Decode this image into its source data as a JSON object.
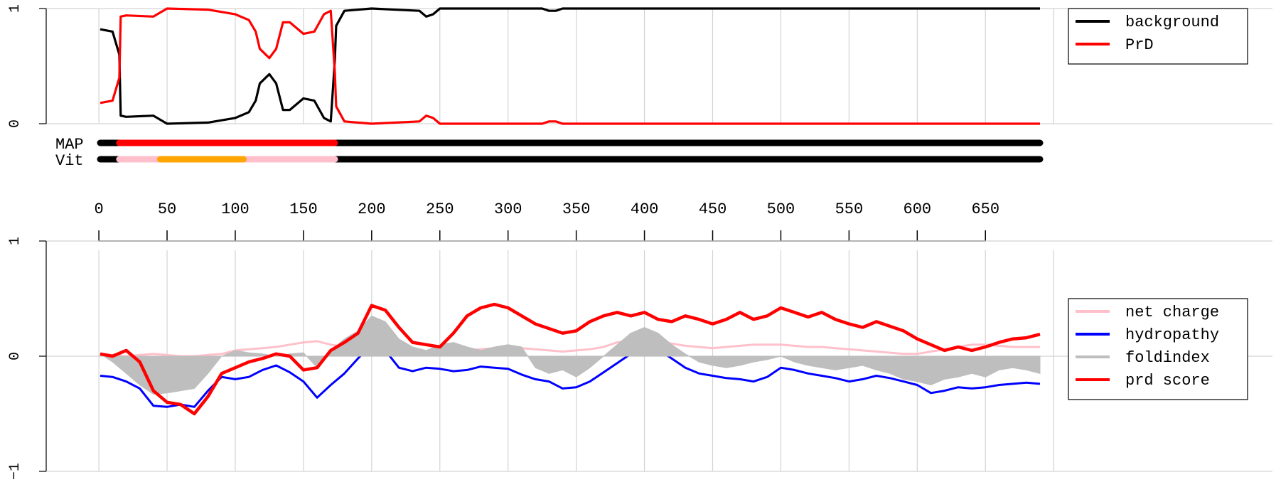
{
  "chart_data": [
    {
      "type": "line",
      "panel": "state-probability",
      "x_range": [
        1,
        690
      ],
      "ylim": [
        0,
        1
      ],
      "y_ticks": [
        "0",
        "1"
      ],
      "grid": true,
      "legend_position": "top-right",
      "x": [
        1,
        10,
        15,
        16,
        20,
        40,
        50,
        80,
        100,
        110,
        115,
        118,
        125,
        130,
        135,
        140,
        150,
        158,
        165,
        170,
        173,
        174,
        180,
        200,
        235,
        240,
        245,
        250,
        325,
        330,
        335,
        340,
        690
      ],
      "series": [
        {
          "name": "background",
          "color": "#000000",
          "values": [
            0.82,
            0.8,
            0.6,
            0.07,
            0.06,
            0.07,
            0.0,
            0.01,
            0.05,
            0.1,
            0.2,
            0.35,
            0.43,
            0.35,
            0.12,
            0.12,
            0.22,
            0.2,
            0.05,
            0.02,
            0.55,
            0.85,
            0.98,
            1.0,
            0.98,
            0.93,
            0.95,
            1.0,
            1.0,
            0.98,
            0.98,
            1.0,
            1.0
          ]
        },
        {
          "name": "PrD",
          "color": "#ff0000",
          "values": [
            0.18,
            0.2,
            0.4,
            0.93,
            0.94,
            0.93,
            1.0,
            0.99,
            0.95,
            0.9,
            0.8,
            0.65,
            0.57,
            0.65,
            0.88,
            0.88,
            0.78,
            0.8,
            0.95,
            0.98,
            0.45,
            0.15,
            0.02,
            0.0,
            0.02,
            0.07,
            0.05,
            0.0,
            0.0,
            0.02,
            0.02,
            0.0,
            0.0
          ]
        }
      ]
    },
    {
      "type": "segments",
      "panel": "annotation-tracks",
      "tracks": [
        {
          "label": "MAP",
          "segments": [
            {
              "start": 1,
              "end": 690,
              "color": "#000000"
            },
            {
              "start": 15,
              "end": 173,
              "color": "#ff0000"
            }
          ]
        },
        {
          "label": "Vit",
          "segments": [
            {
              "start": 1,
              "end": 690,
              "color": "#000000"
            },
            {
              "start": 15,
              "end": 173,
              "color": "#ffc0cb"
            },
            {
              "start": 45,
              "end": 106,
              "color": "#ffa500"
            }
          ]
        }
      ]
    },
    {
      "type": "axis",
      "panel": "residue-axis",
      "ticks": [
        0,
        50,
        100,
        150,
        200,
        250,
        300,
        350,
        400,
        450,
        500,
        550,
        600,
        650
      ]
    },
    {
      "type": "line",
      "panel": "sequence-scores",
      "x_range": [
        1,
        690
      ],
      "ylim": [
        -1,
        1
      ],
      "y_ticks": [
        "−1",
        "0",
        "1"
      ],
      "grid": true,
      "legend_position": "right",
      "x": [
        1,
        10,
        20,
        30,
        40,
        50,
        60,
        70,
        80,
        90,
        100,
        110,
        120,
        130,
        140,
        150,
        160,
        170,
        180,
        190,
        200,
        210,
        220,
        230,
        240,
        250,
        260,
        270,
        280,
        290,
        300,
        310,
        320,
        330,
        340,
        350,
        360,
        370,
        380,
        390,
        400,
        410,
        420,
        430,
        440,
        450,
        460,
        470,
        480,
        490,
        500,
        510,
        520,
        530,
        540,
        550,
        560,
        570,
        580,
        590,
        600,
        610,
        620,
        630,
        640,
        650,
        660,
        670,
        680,
        690
      ],
      "series": [
        {
          "name": "net charge",
          "color": "#ffc0cb",
          "values": [
            0.02,
            0.01,
            0.0,
            0.01,
            0.02,
            0.01,
            0.0,
            0.0,
            0.01,
            0.02,
            0.05,
            0.06,
            0.07,
            0.08,
            0.1,
            0.12,
            0.13,
            0.1,
            0.08,
            0.06,
            0.06,
            0.05,
            0.04,
            0.03,
            0.03,
            0.04,
            0.05,
            0.05,
            0.06,
            0.07,
            0.08,
            0.07,
            0.06,
            0.05,
            0.04,
            0.05,
            0.06,
            0.08,
            0.12,
            0.14,
            0.15,
            0.13,
            0.11,
            0.09,
            0.08,
            0.07,
            0.08,
            0.09,
            0.1,
            0.1,
            0.1,
            0.09,
            0.08,
            0.08,
            0.07,
            0.06,
            0.05,
            0.04,
            0.03,
            0.02,
            0.02,
            0.04,
            0.06,
            0.08,
            0.1,
            0.1,
            0.09,
            0.08,
            0.08,
            0.08
          ]
        },
        {
          "name": "hydropathy",
          "color": "#0000ff",
          "values": [
            -0.17,
            -0.18,
            -0.22,
            -0.28,
            -0.43,
            -0.44,
            -0.42,
            -0.44,
            -0.3,
            -0.18,
            -0.2,
            -0.18,
            -0.12,
            -0.08,
            -0.14,
            -0.22,
            -0.36,
            -0.25,
            -0.15,
            -0.02,
            0.1,
            0.05,
            -0.1,
            -0.13,
            -0.1,
            -0.11,
            -0.13,
            -0.12,
            -0.09,
            -0.1,
            -0.11,
            -0.16,
            -0.2,
            -0.22,
            -0.28,
            -0.27,
            -0.22,
            -0.14,
            -0.06,
            0.02,
            0.08,
            0.06,
            -0.02,
            -0.1,
            -0.15,
            -0.17,
            -0.19,
            -0.2,
            -0.22,
            -0.18,
            -0.1,
            -0.12,
            -0.15,
            -0.17,
            -0.19,
            -0.22,
            -0.2,
            -0.17,
            -0.19,
            -0.22,
            -0.25,
            -0.32,
            -0.3,
            -0.27,
            -0.28,
            -0.27,
            -0.25,
            -0.24,
            -0.23,
            -0.24
          ]
        },
        {
          "name": "foldindex",
          "color": "#bebebe",
          "values": [
            0.02,
            -0.05,
            -0.15,
            -0.25,
            -0.33,
            -0.32,
            -0.3,
            -0.28,
            -0.15,
            0.0,
            0.05,
            0.03,
            0.02,
            0.0,
            0.02,
            0.03,
            -0.1,
            0.05,
            0.15,
            0.22,
            0.35,
            0.3,
            0.15,
            0.08,
            0.05,
            0.1,
            0.12,
            0.08,
            0.05,
            0.08,
            0.1,
            0.08,
            -0.1,
            -0.15,
            -0.12,
            -0.18,
            -0.1,
            0.0,
            0.1,
            0.2,
            0.25,
            0.2,
            0.1,
            0.02,
            -0.05,
            -0.08,
            -0.1,
            -0.08,
            -0.05,
            -0.03,
            0.0,
            -0.05,
            -0.08,
            -0.1,
            -0.12,
            -0.1,
            -0.08,
            -0.12,
            -0.15,
            -0.2,
            -0.22,
            -0.25,
            -0.2,
            -0.18,
            -0.15,
            -0.18,
            -0.12,
            -0.1,
            -0.12,
            -0.15
          ]
        },
        {
          "name": "prd score",
          "color": "#ff0000",
          "values": [
            0.02,
            0.0,
            0.05,
            -0.05,
            -0.3,
            -0.4,
            -0.42,
            -0.5,
            -0.35,
            -0.15,
            -0.1,
            -0.05,
            -0.02,
            0.02,
            0.0,
            -0.12,
            -0.1,
            0.05,
            0.12,
            0.2,
            0.44,
            0.4,
            0.25,
            0.12,
            0.1,
            0.08,
            0.2,
            0.35,
            0.42,
            0.45,
            0.42,
            0.35,
            0.28,
            0.24,
            0.2,
            0.22,
            0.3,
            0.35,
            0.38,
            0.35,
            0.38,
            0.32,
            0.3,
            0.35,
            0.32,
            0.28,
            0.32,
            0.38,
            0.32,
            0.35,
            0.42,
            0.38,
            0.34,
            0.38,
            0.32,
            0.28,
            0.25,
            0.3,
            0.26,
            0.22,
            0.15,
            0.1,
            0.05,
            0.08,
            0.05,
            0.08,
            0.12,
            0.15,
            0.16,
            0.19
          ]
        }
      ]
    }
  ]
}
